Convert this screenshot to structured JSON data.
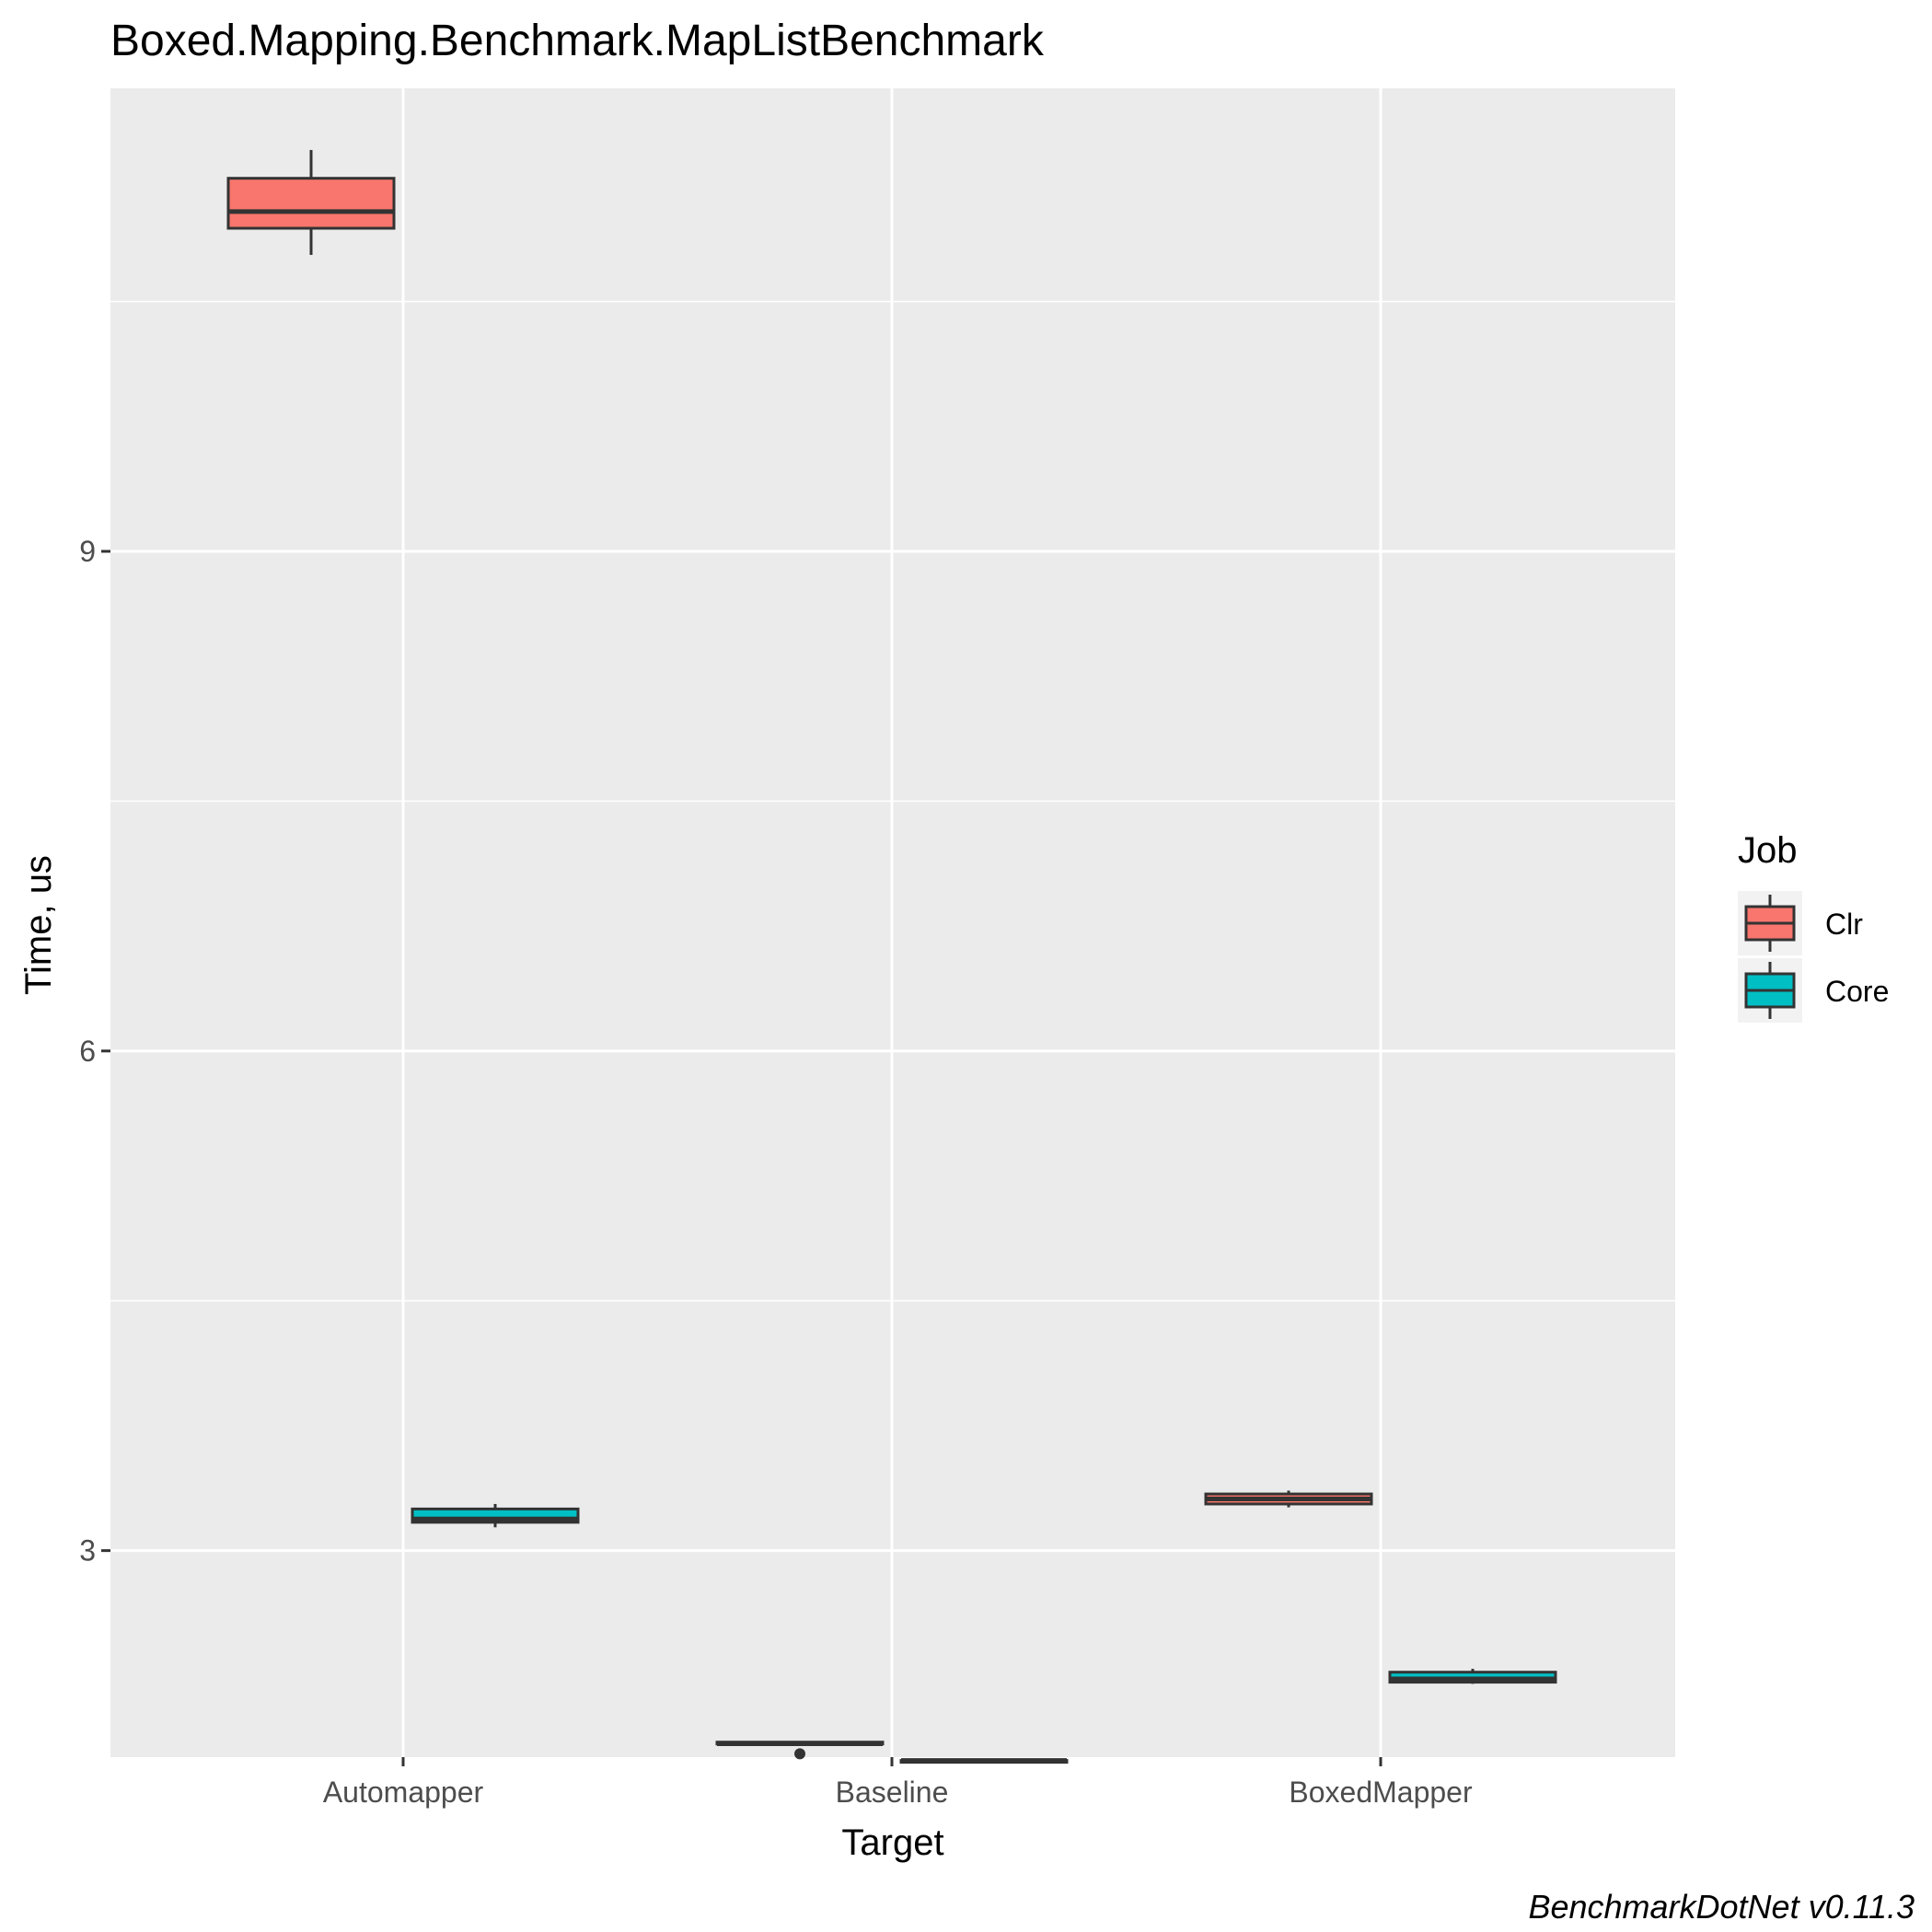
{
  "chart_data": {
    "type": "box",
    "title": "Boxed.Mapping.Benchmark.MapListBenchmark",
    "xlabel": "Target",
    "ylabel": "Time, us",
    "categories": [
      "Automapper",
      "Baseline",
      "BoxedMapper"
    ],
    "ylim": [
      1.76,
      11.78
    ],
    "y_ticks": [
      3,
      6,
      9
    ],
    "grid": true,
    "legend": {
      "title": "Job",
      "position": "right"
    },
    "series": [
      {
        "name": "Clr",
        "color": "#F8766D",
        "boxes": [
          {
            "category": "Automapper",
            "min": 10.78,
            "q1": 10.94,
            "median": 11.04,
            "q3": 11.24,
            "max": 11.41
          },
          {
            "category": "Baseline",
            "min": 1.84,
            "q1": 1.84,
            "median": 1.84,
            "q3": 1.85,
            "max": 1.85,
            "outliers": [
              1.78
            ]
          },
          {
            "category": "BoxedMapper",
            "min": 3.26,
            "q1": 3.28,
            "median": 3.31,
            "q3": 3.34,
            "max": 3.36
          }
        ]
      },
      {
        "name": "Core",
        "color": "#00BFC4",
        "boxes": [
          {
            "category": "Automapper",
            "min": 3.14,
            "q1": 3.17,
            "median": 3.19,
            "q3": 3.25,
            "max": 3.28
          },
          {
            "category": "Baseline",
            "min": 1.73,
            "q1": 1.73,
            "median": 1.74,
            "q3": 1.74,
            "max": 1.74
          },
          {
            "category": "BoxedMapper",
            "min": 2.2,
            "q1": 2.21,
            "median": 2.23,
            "q3": 2.27,
            "max": 2.29
          }
        ]
      }
    ],
    "caption": "BenchmarkDotNet v0.11.3"
  }
}
